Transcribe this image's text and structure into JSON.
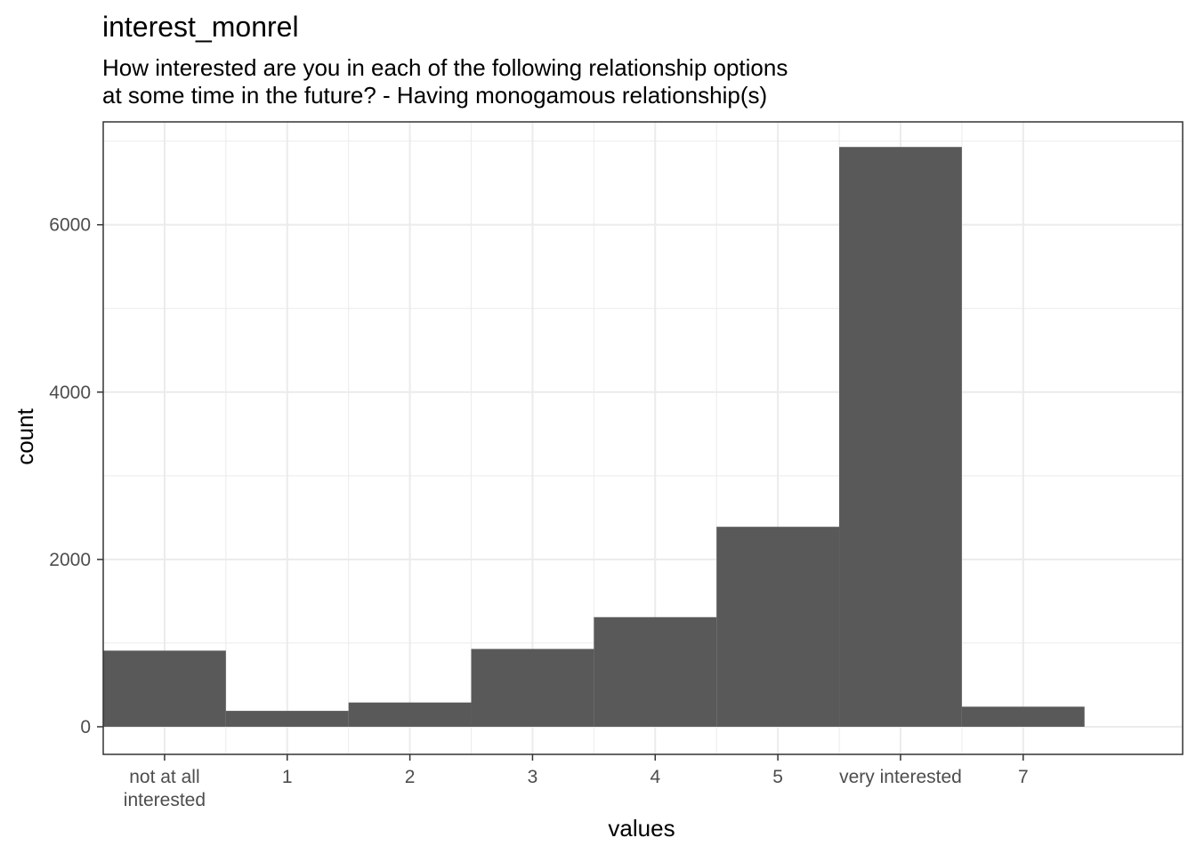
{
  "chart_data": {
    "type": "bar",
    "title": "interest_monrel",
    "subtitle": [
      "How interested are you in each of the following relationship options",
      "at some time in the future? - Having monogamous relationship(s)"
    ],
    "xlabel": "values",
    "ylabel": "count",
    "x_tick_labels": [
      [
        "not at all",
        "interested"
      ],
      [
        "1"
      ],
      [
        "2"
      ],
      [
        "3"
      ],
      [
        "4"
      ],
      [
        "5"
      ],
      [
        "very interested"
      ],
      [
        "7"
      ]
    ],
    "x_positions": [
      0,
      1,
      2,
      3,
      4,
      5,
      6,
      7
    ],
    "values": [
      910,
      190,
      290,
      930,
      1310,
      2390,
      6930,
      240
    ],
    "xlim": [
      -0.5,
      8.3
    ],
    "ylim": [
      -330,
      7230
    ],
    "y_ticks": [
      0,
      2000,
      4000,
      6000
    ],
    "y_tick_labels": [
      "0",
      "2000",
      "4000",
      "6000"
    ],
    "bar_color": "#595959",
    "grid": true,
    "grid_color": "#ebebeb",
    "panel_border_color": "#333333"
  }
}
